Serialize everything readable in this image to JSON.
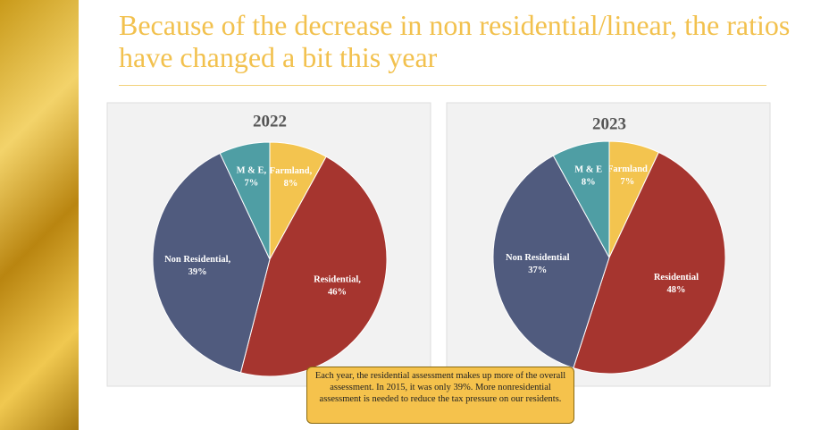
{
  "title": "Because of the decrease in non residential/linear, the ratios have changed a bit this year",
  "callout": "Each year, the residential assessment makes up more of the overall assessment.  In 2015, it was only 39%.   More nonresidential assessment is needed to reduce the tax pressure on our residents.",
  "chart_data": [
    {
      "type": "pie",
      "title": "2022",
      "categories": [
        "Farmland,",
        "Residential,",
        "Non Residential,",
        "M & E,"
      ],
      "values": [
        8,
        46,
        39,
        7
      ],
      "value_labels": [
        "8%",
        "46%",
        "39%",
        "7%"
      ],
      "colors": [
        "#f3c44f",
        "#a6352f",
        "#505b7e",
        "#4f9ea4"
      ]
    },
    {
      "type": "pie",
      "title": "2023",
      "categories": [
        "Farmland",
        "Residential",
        "Non Residential",
        "M & E"
      ],
      "values": [
        7,
        48,
        37,
        8
      ],
      "value_labels": [
        "7%",
        "48%",
        "37%",
        "8%"
      ],
      "colors": [
        "#f3c44f",
        "#a6352f",
        "#505b7e",
        "#4f9ea4"
      ]
    }
  ]
}
